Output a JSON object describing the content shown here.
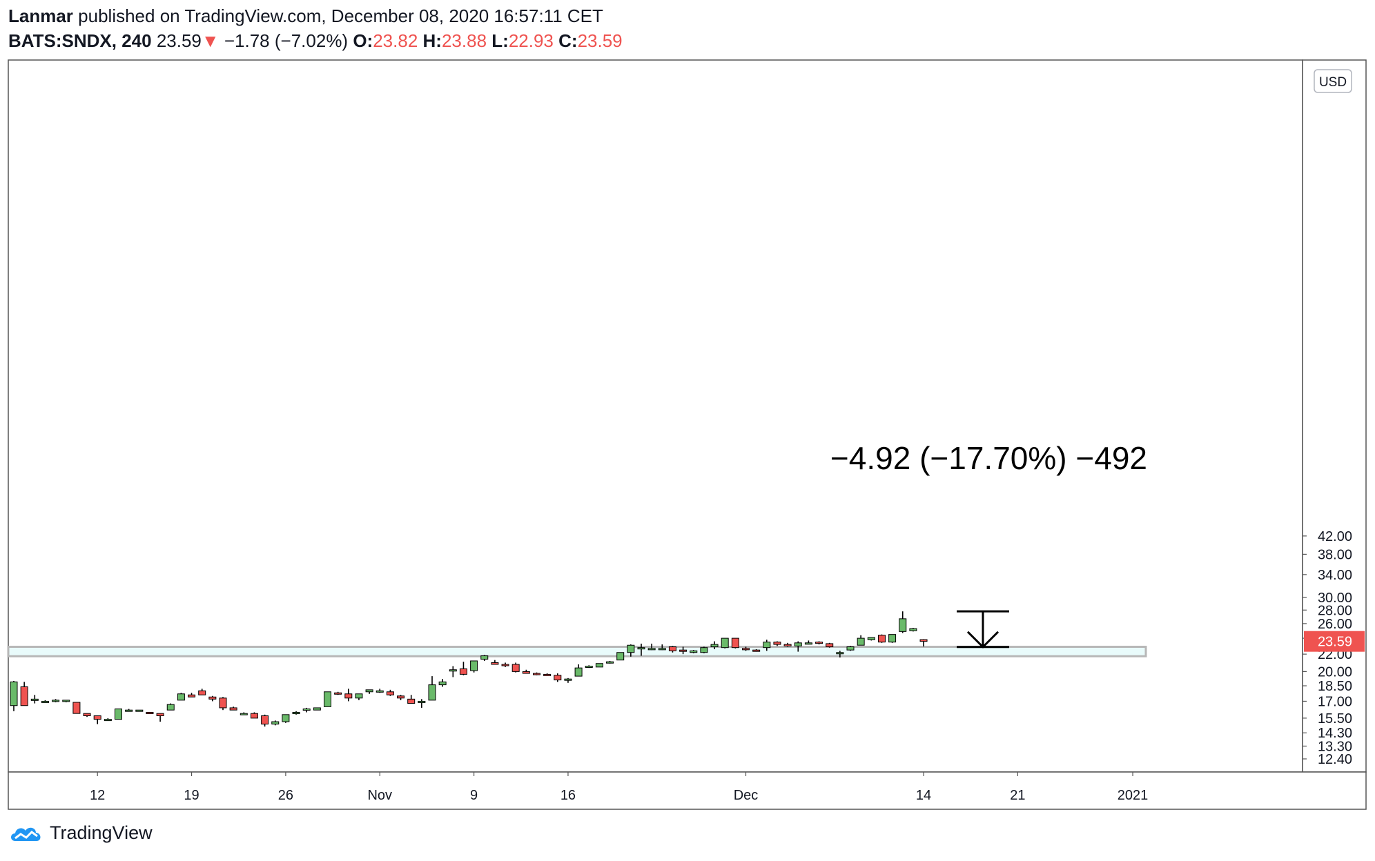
{
  "header": {
    "author": "Lanmar",
    "published_text": "published on TradingView.com, December 08, 2020 16:57:11 CET",
    "symbol": "BATS:SNDX, 240",
    "last": "23.59",
    "change_arrow": "▼",
    "change": "−1.78 (−7.02%)",
    "o_label": "O:",
    "o_value": "23.82",
    "h_label": "H:",
    "h_value": "23.88",
    "l_label": "L:",
    "l_value": "22.93",
    "c_label": "C:",
    "c_value": "23.59"
  },
  "footer": {
    "brand": "TradingView"
  },
  "chart_data": {
    "type": "candlestick",
    "scale": "log",
    "ylim": [
      12.0,
      42.0
    ],
    "currency_badge": "USD",
    "y_ticks": [
      "42.00",
      "38.00",
      "34.00",
      "30.00",
      "28.00",
      "26.00",
      "24.00",
      "22.00",
      "20.00",
      "18.50",
      "17.00",
      "15.50",
      "14.30",
      "13.30",
      "12.40"
    ],
    "x_ticks": [
      "12",
      "19",
      "26",
      "Nov",
      "9",
      "16",
      "Dec",
      "14",
      "21",
      "2021"
    ],
    "x_tick_slots": [
      8,
      17,
      26,
      35,
      44,
      53,
      70,
      87,
      96,
      107
    ],
    "last_price_label": "23.59",
    "colors": {
      "up": "#6aba6a",
      "down": "#ef5350",
      "wick": "#000000",
      "zone_fill": "#e9fbfb",
      "zone_stroke": "#b7b7b7",
      "price_label_bg": "#ef5350"
    },
    "support_zone": {
      "low": 21.75,
      "high": 22.9
    },
    "measure": {
      "from": 27.8,
      "to": 22.88,
      "label": "−4.92 (−17.70%) −492"
    },
    "candles": [
      {
        "o": 16.6,
        "h": 19.0,
        "l": 16.1,
        "c": 18.9
      },
      {
        "o": 18.4,
        "h": 18.9,
        "l": 16.6,
        "c": 16.6
      },
      {
        "o": 17.2,
        "h": 17.6,
        "l": 16.8,
        "c": 17.2
      },
      {
        "o": 17.0,
        "h": 17.1,
        "l": 16.9,
        "c": 17.0
      },
      {
        "o": 17.0,
        "h": 17.2,
        "l": 16.9,
        "c": 17.1
      },
      {
        "o": 17.0,
        "h": 17.1,
        "l": 16.9,
        "c": 17.1
      },
      {
        "o": 16.9,
        "h": 16.9,
        "l": 15.9,
        "c": 15.9
      },
      {
        "o": 15.9,
        "h": 15.9,
        "l": 15.6,
        "c": 15.7
      },
      {
        "o": 15.7,
        "h": 15.7,
        "l": 15.0,
        "c": 15.4
      },
      {
        "o": 15.4,
        "h": 15.5,
        "l": 15.3,
        "c": 15.4
      },
      {
        "o": 15.4,
        "h": 16.3,
        "l": 15.4,
        "c": 16.3
      },
      {
        "o": 16.2,
        "h": 16.3,
        "l": 16.1,
        "c": 16.2
      },
      {
        "o": 16.2,
        "h": 16.2,
        "l": 16.1,
        "c": 16.2
      },
      {
        "o": 16.0,
        "h": 16.0,
        "l": 15.9,
        "c": 15.9
      },
      {
        "o": 15.9,
        "h": 15.9,
        "l": 15.2,
        "c": 15.7
      },
      {
        "o": 16.2,
        "h": 16.8,
        "l": 16.2,
        "c": 16.7
      },
      {
        "o": 17.1,
        "h": 17.8,
        "l": 17.1,
        "c": 17.7
      },
      {
        "o": 17.6,
        "h": 17.8,
        "l": 17.4,
        "c": 17.4
      },
      {
        "o": 18.0,
        "h": 18.2,
        "l": 17.6,
        "c": 17.6
      },
      {
        "o": 17.4,
        "h": 17.5,
        "l": 17.0,
        "c": 17.2
      },
      {
        "o": 17.3,
        "h": 17.4,
        "l": 16.2,
        "c": 16.4
      },
      {
        "o": 16.4,
        "h": 16.5,
        "l": 16.2,
        "c": 16.2
      },
      {
        "o": 15.9,
        "h": 16.0,
        "l": 15.8,
        "c": 15.9
      },
      {
        "o": 15.9,
        "h": 16.0,
        "l": 15.5,
        "c": 15.5
      },
      {
        "o": 15.7,
        "h": 15.8,
        "l": 14.8,
        "c": 15.0
      },
      {
        "o": 15.0,
        "h": 15.3,
        "l": 14.9,
        "c": 15.2
      },
      {
        "o": 15.2,
        "h": 15.8,
        "l": 15.1,
        "c": 15.8
      },
      {
        "o": 15.9,
        "h": 16.1,
        "l": 15.8,
        "c": 16.0
      },
      {
        "o": 16.2,
        "h": 16.4,
        "l": 16.0,
        "c": 16.3
      },
      {
        "o": 16.2,
        "h": 16.4,
        "l": 16.2,
        "c": 16.4
      },
      {
        "o": 16.5,
        "h": 17.9,
        "l": 16.5,
        "c": 17.9
      },
      {
        "o": 17.8,
        "h": 17.9,
        "l": 17.6,
        "c": 17.7
      },
      {
        "o": 17.7,
        "h": 18.2,
        "l": 17.0,
        "c": 17.3
      },
      {
        "o": 17.3,
        "h": 17.7,
        "l": 17.1,
        "c": 17.7
      },
      {
        "o": 17.9,
        "h": 18.1,
        "l": 17.7,
        "c": 18.1
      },
      {
        "o": 18.0,
        "h": 18.2,
        "l": 17.8,
        "c": 18.0
      },
      {
        "o": 17.9,
        "h": 18.1,
        "l": 17.5,
        "c": 17.6
      },
      {
        "o": 17.5,
        "h": 17.6,
        "l": 17.1,
        "c": 17.3
      },
      {
        "o": 17.2,
        "h": 17.6,
        "l": 16.8,
        "c": 16.8
      },
      {
        "o": 16.9,
        "h": 17.2,
        "l": 16.4,
        "c": 17.0
      },
      {
        "o": 17.1,
        "h": 19.5,
        "l": 17.1,
        "c": 18.6
      },
      {
        "o": 18.6,
        "h": 19.2,
        "l": 18.4,
        "c": 18.9
      },
      {
        "o": 20.1,
        "h": 20.6,
        "l": 19.4,
        "c": 20.2
      },
      {
        "o": 20.3,
        "h": 21.1,
        "l": 19.6,
        "c": 19.7
      },
      {
        "o": 20.1,
        "h": 21.2,
        "l": 19.9,
        "c": 21.2
      },
      {
        "o": 21.4,
        "h": 21.9,
        "l": 21.2,
        "c": 21.8
      },
      {
        "o": 21.0,
        "h": 21.3,
        "l": 20.8,
        "c": 20.8
      },
      {
        "o": 20.8,
        "h": 21.0,
        "l": 20.5,
        "c": 20.7
      },
      {
        "o": 20.8,
        "h": 21.0,
        "l": 19.9,
        "c": 20.0
      },
      {
        "o": 20.0,
        "h": 20.2,
        "l": 19.8,
        "c": 19.8
      },
      {
        "o": 19.8,
        "h": 19.9,
        "l": 19.6,
        "c": 19.7
      },
      {
        "o": 19.7,
        "h": 19.8,
        "l": 19.6,
        "c": 19.6
      },
      {
        "o": 19.6,
        "h": 19.8,
        "l": 18.9,
        "c": 19.1
      },
      {
        "o": 19.2,
        "h": 19.3,
        "l": 18.8,
        "c": 19.2
      },
      {
        "o": 19.5,
        "h": 20.8,
        "l": 19.5,
        "c": 20.4
      },
      {
        "o": 20.5,
        "h": 20.7,
        "l": 20.4,
        "c": 20.6
      },
      {
        "o": 20.5,
        "h": 20.9,
        "l": 20.5,
        "c": 20.9
      },
      {
        "o": 21.0,
        "h": 21.2,
        "l": 20.9,
        "c": 21.1
      },
      {
        "o": 21.3,
        "h": 22.2,
        "l": 21.3,
        "c": 22.2
      },
      {
        "o": 22.2,
        "h": 23.2,
        "l": 21.7,
        "c": 23.1
      },
      {
        "o": 22.7,
        "h": 23.3,
        "l": 21.8,
        "c": 22.8
      },
      {
        "o": 22.7,
        "h": 23.3,
        "l": 22.5,
        "c": 22.7
      },
      {
        "o": 22.7,
        "h": 23.2,
        "l": 22.5,
        "c": 22.7
      },
      {
        "o": 22.9,
        "h": 23.0,
        "l": 22.2,
        "c": 22.4
      },
      {
        "o": 22.5,
        "h": 22.9,
        "l": 22.0,
        "c": 22.4
      },
      {
        "o": 22.2,
        "h": 22.5,
        "l": 22.1,
        "c": 22.4
      },
      {
        "o": 22.2,
        "h": 22.9,
        "l": 22.1,
        "c": 22.8
      },
      {
        "o": 22.9,
        "h": 23.6,
        "l": 22.6,
        "c": 23.2
      },
      {
        "o": 22.8,
        "h": 24.0,
        "l": 22.7,
        "c": 24.0
      },
      {
        "o": 24.0,
        "h": 24.0,
        "l": 22.7,
        "c": 22.8
      },
      {
        "o": 22.7,
        "h": 22.9,
        "l": 22.4,
        "c": 22.6
      },
      {
        "o": 22.5,
        "h": 22.6,
        "l": 22.3,
        "c": 22.4
      },
      {
        "o": 22.8,
        "h": 23.8,
        "l": 22.4,
        "c": 23.5
      },
      {
        "o": 23.5,
        "h": 23.6,
        "l": 23.0,
        "c": 23.2
      },
      {
        "o": 23.2,
        "h": 23.4,
        "l": 22.9,
        "c": 23.0
      },
      {
        "o": 23.0,
        "h": 23.6,
        "l": 22.3,
        "c": 23.4
      },
      {
        "o": 23.3,
        "h": 23.7,
        "l": 23.2,
        "c": 23.4
      },
      {
        "o": 23.5,
        "h": 23.6,
        "l": 23.2,
        "c": 23.4
      },
      {
        "o": 23.3,
        "h": 23.4,
        "l": 22.8,
        "c": 22.9
      },
      {
        "o": 22.2,
        "h": 22.4,
        "l": 21.6,
        "c": 22.2
      },
      {
        "o": 22.5,
        "h": 23.0,
        "l": 22.4,
        "c": 22.9
      },
      {
        "o": 23.1,
        "h": 24.4,
        "l": 23.1,
        "c": 24.0
      },
      {
        "o": 23.8,
        "h": 24.1,
        "l": 23.7,
        "c": 24.1
      },
      {
        "o": 24.4,
        "h": 24.5,
        "l": 23.4,
        "c": 23.5
      },
      {
        "o": 23.5,
        "h": 24.5,
        "l": 23.4,
        "c": 24.5
      },
      {
        "o": 24.9,
        "h": 27.8,
        "l": 24.7,
        "c": 26.7
      },
      {
        "o": 25.0,
        "h": 25.4,
        "l": 24.9,
        "c": 25.3
      },
      {
        "o": 23.82,
        "h": 23.88,
        "l": 22.93,
        "c": 23.59
      }
    ]
  }
}
